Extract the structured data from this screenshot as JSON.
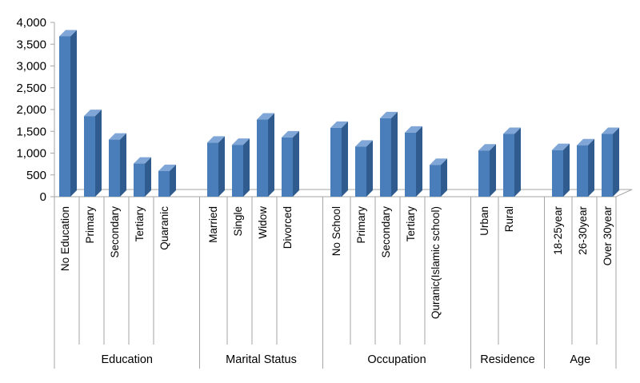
{
  "chart_data": {
    "type": "bar",
    "style": "3d-columns",
    "title": "",
    "xlabel": "",
    "ylabel": "",
    "ylim": [
      0,
      4000
    ],
    "yticks": [
      "0",
      "500",
      "1,000",
      "1,500",
      "2,000",
      "2,500",
      "3,000",
      "3,500",
      "4,000"
    ],
    "grid": false,
    "legend": "none",
    "colors": {
      "bar_front": "#4a7ebb",
      "bar_side": "#2f5b8e",
      "bar_top": "#7fa6d6",
      "axis": "#a6a6a6"
    },
    "groups": [
      {
        "name": "Education",
        "categories": [
          "No Education",
          "Primary",
          "Secondary",
          "Tertiary",
          "Quaranic"
        ],
        "values": [
          3680,
          1850,
          1310,
          760,
          590
        ]
      },
      {
        "name": "Marital Status",
        "categories": [
          "Married",
          "Single",
          "Widow",
          "Divorced"
        ],
        "values": [
          1240,
          1190,
          1770,
          1360
        ]
      },
      {
        "name": "Occupation",
        "categories": [
          "No School",
          "Primary",
          "Secondary",
          "Tertiary",
          "Quranic(Islamic school)"
        ],
        "values": [
          1580,
          1150,
          1800,
          1470,
          730
        ]
      },
      {
        "name": "Residence",
        "categories": [
          "Urban",
          "Rural"
        ],
        "values": [
          1060,
          1440
        ]
      },
      {
        "name": "Age",
        "categories": [
          "18-25year",
          "26-30year",
          "Over 30year"
        ],
        "values": [
          1070,
          1180,
          1440
        ]
      }
    ]
  }
}
